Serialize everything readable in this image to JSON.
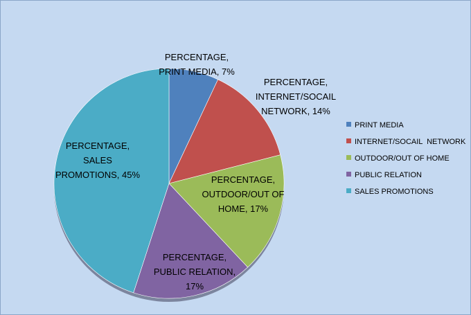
{
  "chart_data": {
    "type": "pie",
    "title": "",
    "series_name": "PERCENTAGE",
    "legend_position": "right",
    "categories": [
      "PRINT MEDIA",
      "INTERNET/SOCAIL  NETWORK",
      "OUTDOOR/OUT OF HOME",
      "PUBLIC RELATION",
      "SALES PROMOTIONS"
    ],
    "values": [
      7,
      14,
      17,
      17,
      45
    ],
    "colors": [
      "#4f81bd",
      "#c0504d",
      "#9bbb59",
      "#8064a2",
      "#4bacc6"
    ],
    "data_labels": [
      [
        "PERCENTAGE,",
        "PRINT MEDIA, 7%"
      ],
      [
        "PERCENTAGE,",
        "INTERNET/SOCAIL",
        "NETWORK, 14%"
      ],
      [
        "PERCENTAGE,",
        "OUTDOOR/OUT OF",
        "HOME, 17%"
      ],
      [
        "PERCENTAGE,",
        "PUBLIC RELATION,",
        "17%"
      ],
      [
        "PERCENTAGE,",
        "SALES",
        "PROMOTIONS, 45%"
      ]
    ],
    "background_color": "#c5d9f1"
  }
}
